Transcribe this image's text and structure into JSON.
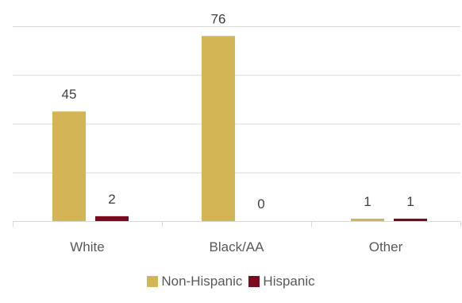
{
  "chart_data": {
    "type": "bar",
    "title": "",
    "xlabel": "",
    "ylabel": "",
    "categories": [
      "White",
      "Black/AA",
      "Other"
    ],
    "series": [
      {
        "name": "Non-Hispanic",
        "values": [
          45,
          76,
          1
        ],
        "color": "#D4B555"
      },
      {
        "name": "Hispanic",
        "values": [
          2,
          0,
          1
        ],
        "color": "#7B0A1E"
      }
    ],
    "ylim": [
      0,
      80
    ],
    "grid": true,
    "legend_position": "bottom",
    "data_labels": true
  }
}
